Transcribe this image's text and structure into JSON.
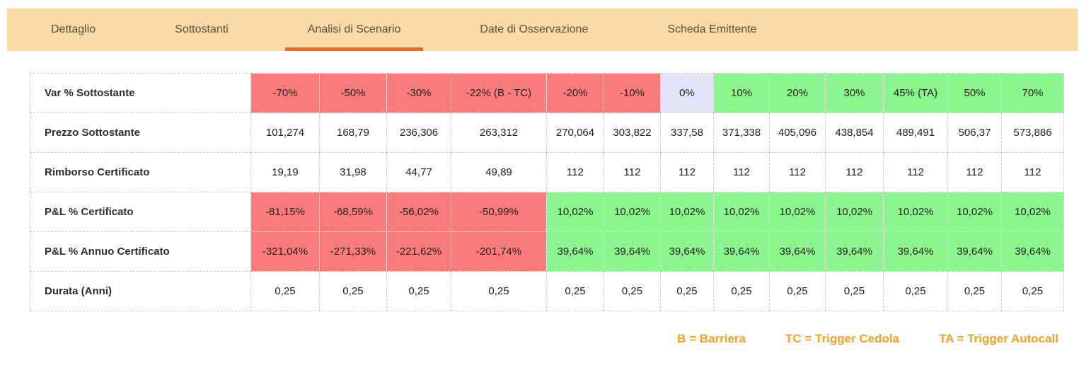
{
  "tabs": {
    "items": [
      {
        "label": "Dettaglio",
        "active": false
      },
      {
        "label": "Sottostanti",
        "active": false
      },
      {
        "label": "Analisi di Scenario",
        "active": true
      },
      {
        "label": "Date di Osservazione",
        "active": false
      },
      {
        "label": "Scheda Emittente",
        "active": false
      }
    ]
  },
  "colors": {
    "tab_bar_bg": "#FBD9A3",
    "active_tab_underline": "#F4651F",
    "negative_cell": "#F97B7B",
    "positive_cell": "#8DF58D",
    "zero_cell": "#E3E3F9",
    "legend_text": "#F9A11E"
  },
  "scenario_table": {
    "rows": [
      {
        "label": "Var % Sottostante",
        "cells": [
          {
            "text": "-70%",
            "bg": "negative"
          },
          {
            "text": "-50%",
            "bg": "negative"
          },
          {
            "text": "-30%",
            "bg": "negative"
          },
          {
            "text": "-22% (B - TC)",
            "bg": "negative"
          },
          {
            "text": "-20%",
            "bg": "negative"
          },
          {
            "text": "-10%",
            "bg": "negative"
          },
          {
            "text": "0%",
            "bg": "zero"
          },
          {
            "text": "10%",
            "bg": "positive"
          },
          {
            "text": "20%",
            "bg": "positive"
          },
          {
            "text": "30%",
            "bg": "positive"
          },
          {
            "text": "45% (TA)",
            "bg": "positive"
          },
          {
            "text": "50%",
            "bg": "positive"
          },
          {
            "text": "70%",
            "bg": "positive"
          }
        ]
      },
      {
        "label": "Prezzo Sottostante",
        "cells": [
          {
            "text": "101,274",
            "bg": "none"
          },
          {
            "text": "168,79",
            "bg": "none"
          },
          {
            "text": "236,306",
            "bg": "none"
          },
          {
            "text": "263,312",
            "bg": "none"
          },
          {
            "text": "270,064",
            "bg": "none"
          },
          {
            "text": "303,822",
            "bg": "none"
          },
          {
            "text": "337,58",
            "bg": "none"
          },
          {
            "text": "371,338",
            "bg": "none"
          },
          {
            "text": "405,096",
            "bg": "none"
          },
          {
            "text": "438,854",
            "bg": "none"
          },
          {
            "text": "489,491",
            "bg": "none"
          },
          {
            "text": "506,37",
            "bg": "none"
          },
          {
            "text": "573,886",
            "bg": "none"
          }
        ]
      },
      {
        "label": "Rimborso Certificato",
        "cells": [
          {
            "text": "19,19",
            "bg": "none"
          },
          {
            "text": "31,98",
            "bg": "none"
          },
          {
            "text": "44,77",
            "bg": "none"
          },
          {
            "text": "49,89",
            "bg": "none"
          },
          {
            "text": "112",
            "bg": "none"
          },
          {
            "text": "112",
            "bg": "none"
          },
          {
            "text": "112",
            "bg": "none"
          },
          {
            "text": "112",
            "bg": "none"
          },
          {
            "text": "112",
            "bg": "none"
          },
          {
            "text": "112",
            "bg": "none"
          },
          {
            "text": "112",
            "bg": "none"
          },
          {
            "text": "112",
            "bg": "none"
          },
          {
            "text": "112",
            "bg": "none"
          }
        ]
      },
      {
        "label": "P&L % Certificato",
        "cells": [
          {
            "text": "-81,15%",
            "bg": "negative"
          },
          {
            "text": "-68,59%",
            "bg": "negative"
          },
          {
            "text": "-56,02%",
            "bg": "negative"
          },
          {
            "text": "-50,99%",
            "bg": "negative"
          },
          {
            "text": "10,02%",
            "bg": "positive"
          },
          {
            "text": "10,02%",
            "bg": "positive"
          },
          {
            "text": "10,02%",
            "bg": "positive"
          },
          {
            "text": "10,02%",
            "bg": "positive"
          },
          {
            "text": "10,02%",
            "bg": "positive"
          },
          {
            "text": "10,02%",
            "bg": "positive"
          },
          {
            "text": "10,02%",
            "bg": "positive"
          },
          {
            "text": "10,02%",
            "bg": "positive"
          },
          {
            "text": "10,02%",
            "bg": "positive"
          }
        ]
      },
      {
        "label": "P&L % Annuo Certificato",
        "cells": [
          {
            "text": "-321,04%",
            "bg": "negative"
          },
          {
            "text": "-271,33%",
            "bg": "negative"
          },
          {
            "text": "-221,62%",
            "bg": "negative"
          },
          {
            "text": "-201,74%",
            "bg": "negative"
          },
          {
            "text": "39,64%",
            "bg": "positive"
          },
          {
            "text": "39,64%",
            "bg": "positive"
          },
          {
            "text": "39,64%",
            "bg": "positive"
          },
          {
            "text": "39,64%",
            "bg": "positive"
          },
          {
            "text": "39,64%",
            "bg": "positive"
          },
          {
            "text": "39,64%",
            "bg": "positive"
          },
          {
            "text": "39,64%",
            "bg": "positive"
          },
          {
            "text": "39,64%",
            "bg": "positive"
          },
          {
            "text": "39,64%",
            "bg": "positive"
          }
        ]
      },
      {
        "label": "Durata (Anni)",
        "cells": [
          {
            "text": "0,25",
            "bg": "none"
          },
          {
            "text": "0,25",
            "bg": "none"
          },
          {
            "text": "0,25",
            "bg": "none"
          },
          {
            "text": "0,25",
            "bg": "none"
          },
          {
            "text": "0,25",
            "bg": "none"
          },
          {
            "text": "0,25",
            "bg": "none"
          },
          {
            "text": "0,25",
            "bg": "none"
          },
          {
            "text": "0,25",
            "bg": "none"
          },
          {
            "text": "0,25",
            "bg": "none"
          },
          {
            "text": "0,25",
            "bg": "none"
          },
          {
            "text": "0,25",
            "bg": "none"
          },
          {
            "text": "0,25",
            "bg": "none"
          },
          {
            "text": "0,25",
            "bg": "none"
          }
        ]
      }
    ]
  },
  "legend": {
    "items": [
      {
        "text": "B = Barriera"
      },
      {
        "text": "TC = Trigger Cedola"
      },
      {
        "text": "TA = Trigger Autocall"
      }
    ]
  }
}
